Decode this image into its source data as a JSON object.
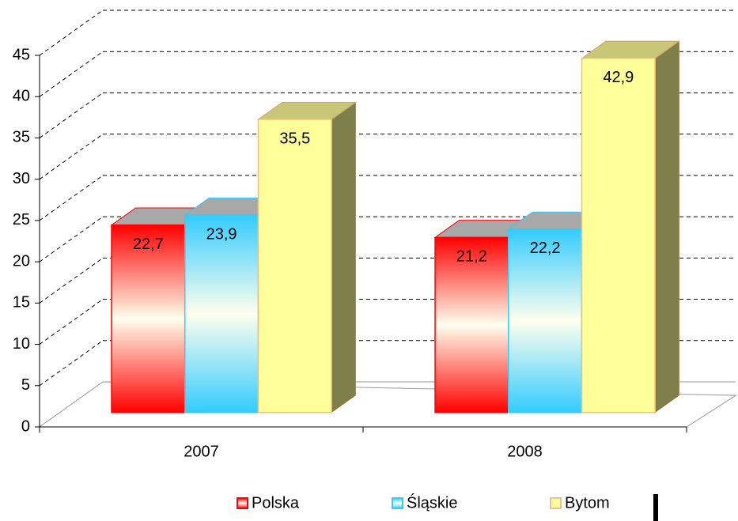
{
  "chart_data": {
    "type": "bar3d",
    "categories": [
      "2007",
      "2008"
    ],
    "series": [
      {
        "name": "Polska",
        "color": "#ff0000",
        "gradient": true,
        "values": [
          22.7,
          21.2
        ],
        "value_labels": [
          "22,7",
          "21,2"
        ]
      },
      {
        "name": "Śląskie",
        "color": "#33ccff",
        "gradient": true,
        "values": [
          23.9,
          22.2
        ],
        "value_labels": [
          "23,9",
          "22,2"
        ]
      },
      {
        "name": "Bytom",
        "color": "#ffff99",
        "gradient": false,
        "values": [
          35.5,
          42.9
        ],
        "value_labels": [
          "35,5",
          "42,9"
        ]
      }
    ],
    "ylim": [
      0,
      45
    ],
    "yticks": [
      0,
      5,
      10,
      15,
      20,
      25,
      30,
      35,
      40,
      45
    ],
    "grid": true,
    "legend": "bottom"
  }
}
